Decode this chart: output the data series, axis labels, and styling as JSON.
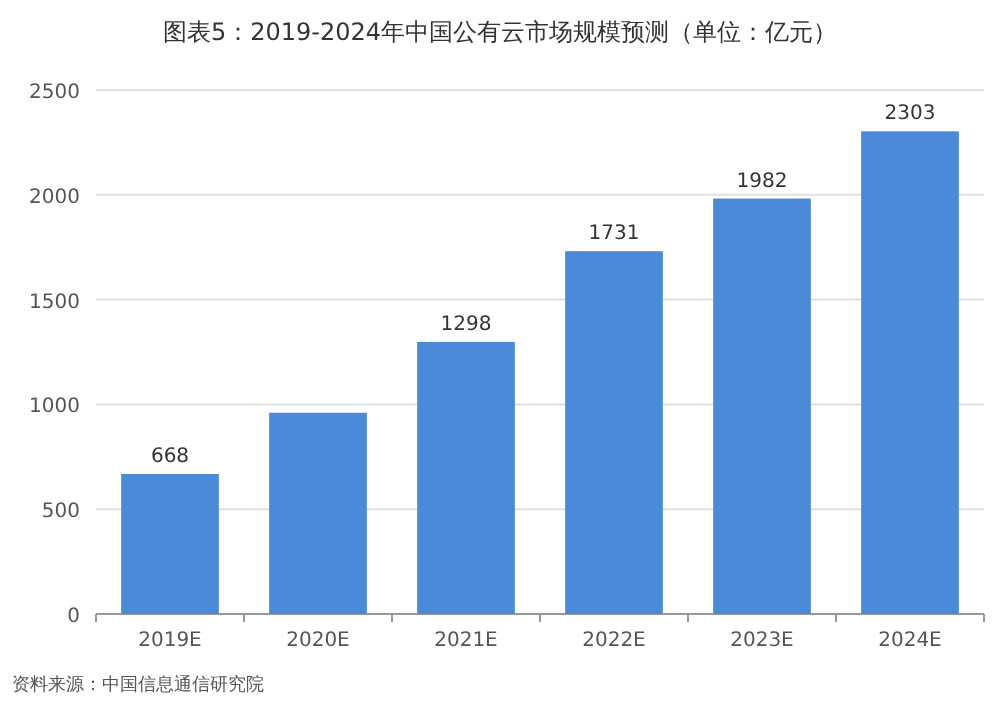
{
  "chart_data": {
    "type": "bar",
    "title": "图表5：2019-2024年中国公有云市场规模预测（单位：亿元）",
    "categories": [
      "2019E",
      "2020E",
      "2021E",
      "2022E",
      "2023E",
      "2024E"
    ],
    "values": [
      668,
      960,
      1298,
      1731,
      1982,
      2303
    ],
    "value_labels": [
      "668",
      null,
      "1298",
      "1731",
      "1982",
      "2303"
    ],
    "color": "#4a8ad9",
    "ylim": [
      0,
      2500
    ],
    "yticks": [
      0,
      500,
      1000,
      1500,
      2000,
      2500
    ],
    "grid": "y",
    "annotations": [
      "资料来源：中国信息通信研究院"
    ]
  }
}
